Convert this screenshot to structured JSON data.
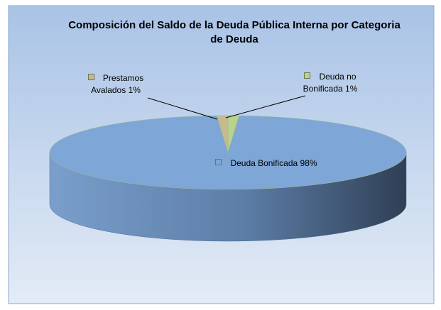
{
  "chart_data": {
    "type": "pie3d",
    "title": "Composición del Saldo de la Deuda Pública Interna por Categoria de Deuda",
    "categories": [
      "Deuda no Bonificada",
      "Deuda Bonificada",
      "Prestamos Avalados"
    ],
    "values": [
      1,
      98,
      1
    ],
    "value_labels": [
      "1%",
      "98%",
      "1%"
    ],
    "colors": [
      "#b9d38c",
      "#7ea6d6",
      "#c9b98e"
    ]
  }
}
